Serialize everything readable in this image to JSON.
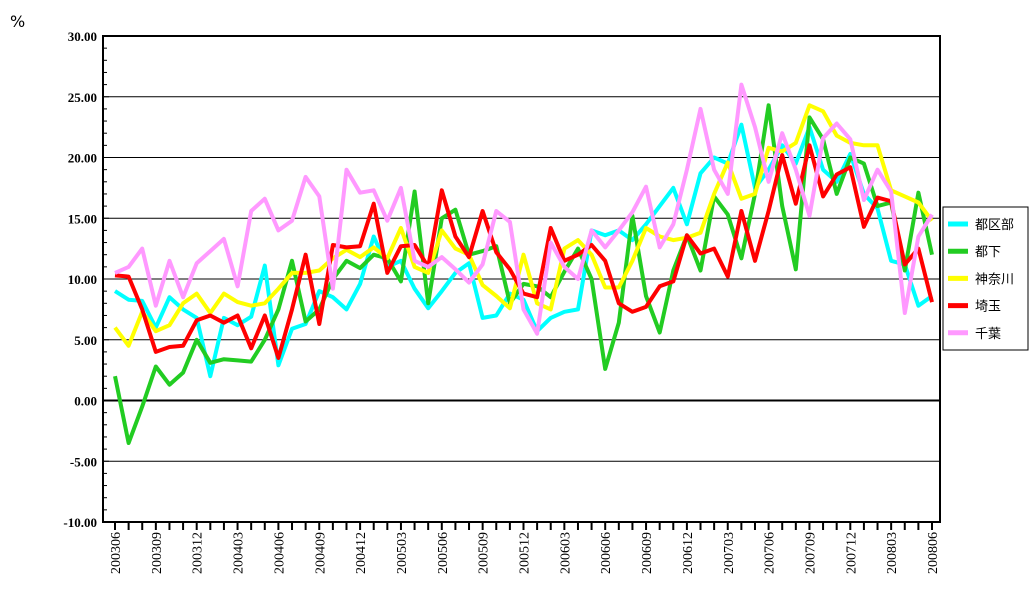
{
  "chart_data": {
    "type": "line",
    "y_axis_label": "%",
    "categories": [
      "200306",
      null,
      null,
      "200309",
      null,
      null,
      "200312",
      null,
      null,
      "200403",
      null,
      null,
      "200406",
      null,
      null,
      "200409",
      null,
      null,
      "200412",
      null,
      null,
      "200503",
      null,
      null,
      "200506",
      null,
      null,
      "200509",
      null,
      null,
      "200512",
      null,
      null,
      "200603",
      null,
      null,
      "200606",
      null,
      null,
      "200609",
      null,
      null,
      "200612",
      null,
      null,
      "200703",
      null,
      null,
      "200706",
      null,
      null,
      "200709",
      null,
      null,
      "200712",
      null,
      null,
      "200803",
      null,
      null,
      "200806"
    ],
    "ylim": [
      -10,
      30
    ],
    "yticks": [
      {
        "value": -10,
        "label": "-10.00"
      },
      {
        "value": -5,
        "label": "-5.00"
      },
      {
        "value": 0,
        "label": "0.00"
      },
      {
        "value": 5,
        "label": "5.00"
      },
      {
        "value": 10,
        "label": "10.00"
      },
      {
        "value": 15,
        "label": "15.00"
      },
      {
        "value": 20,
        "label": "20.00"
      },
      {
        "value": 25,
        "label": "25.00"
      },
      {
        "value": 30,
        "label": "30.00"
      }
    ],
    "grid": true,
    "legend": "right",
    "series": [
      {
        "name": "都区部",
        "color": "#00ffff",
        "values": [
          9.0,
          8.3,
          8.2,
          6.0,
          8.5,
          7.5,
          6.8,
          2.0,
          6.8,
          6.2,
          6.9,
          11.1,
          2.9,
          5.9,
          6.3,
          9.0,
          8.5,
          7.5,
          9.6,
          13.5,
          11.0,
          11.5,
          9.2,
          7.6,
          9.0,
          10.5,
          11.3,
          6.8,
          7.0,
          8.8,
          8.3,
          5.7,
          6.8,
          7.3,
          7.5,
          14.0,
          13.6,
          14.0,
          13.2,
          14.5,
          16.0,
          17.5,
          14.5,
          18.7,
          20.0,
          19.5,
          22.7,
          17.5,
          19.0,
          21.0,
          19.5,
          22.5,
          19.0,
          18.0,
          20.3,
          17.0,
          15.8,
          11.5,
          11.2,
          7.8,
          8.6
        ]
      },
      {
        "name": "都下",
        "color": "#22cc22",
        "values": [
          2.0,
          -3.5,
          -0.5,
          2.8,
          1.3,
          2.3,
          5.0,
          3.1,
          3.4,
          3.3,
          3.2,
          5.0,
          7.5,
          11.5,
          6.5,
          7.5,
          10.0,
          11.5,
          10.9,
          12.0,
          11.7,
          9.8,
          17.2,
          8.0,
          15.0,
          15.7,
          12.0,
          12.3,
          12.7,
          8.0,
          9.6,
          9.4,
          8.5,
          10.6,
          12.5,
          10.0,
          2.6,
          6.4,
          15.2,
          8.6,
          5.6,
          10.7,
          13.6,
          10.7,
          16.8,
          15.3,
          11.7,
          17.0,
          24.3,
          16.0,
          10.8,
          23.3,
          21.5,
          17.0,
          20.0,
          19.5,
          16.0,
          16.3,
          10.7,
          17.1,
          12.0
        ]
      },
      {
        "name": "神奈川",
        "color": "#ffff00",
        "values": [
          6.0,
          4.5,
          7.3,
          5.7,
          6.2,
          8.0,
          8.8,
          7.2,
          8.8,
          8.1,
          7.8,
          8.0,
          9.2,
          10.5,
          10.5,
          10.7,
          11.7,
          12.4,
          11.8,
          12.6,
          11.7,
          14.2,
          11.0,
          10.5,
          14.0,
          12.5,
          12.0,
          9.5,
          8.6,
          7.6,
          12.0,
          8.0,
          7.5,
          12.5,
          13.2,
          12.0,
          9.3,
          9.3,
          11.5,
          14.2,
          13.5,
          13.2,
          13.4,
          13.8,
          17.0,
          19.6,
          16.6,
          17.0,
          20.8,
          20.5,
          21.2,
          24.3,
          23.8,
          21.8,
          21.2,
          21.0,
          21.0,
          17.3,
          16.8,
          16.3,
          14.8
        ]
      },
      {
        "name": "埼玉",
        "color": "#ff0000",
        "values": [
          10.3,
          10.2,
          7.5,
          4.0,
          4.4,
          4.5,
          6.6,
          7.0,
          6.4,
          7.0,
          4.3,
          7.0,
          3.5,
          7.5,
          12.0,
          6.3,
          12.8,
          12.6,
          12.7,
          16.2,
          10.5,
          12.7,
          12.8,
          11.0,
          17.3,
          13.5,
          11.8,
          15.6,
          12.2,
          10.8,
          8.8,
          8.5,
          14.2,
          11.5,
          12.0,
          12.8,
          11.5,
          8.0,
          7.3,
          7.7,
          9.4,
          9.8,
          13.6,
          12.1,
          12.5,
          10.2,
          15.6,
          11.5,
          15.6,
          20.2,
          16.2,
          21.0,
          16.8,
          18.6,
          19.2,
          14.3,
          16.7,
          16.4,
          11.2,
          12.5,
          8.1
        ]
      },
      {
        "name": "千葉",
        "color": "#ff99ff",
        "values": [
          10.5,
          11.0,
          12.5,
          7.8,
          11.5,
          8.5,
          11.3,
          12.3,
          13.3,
          9.4,
          15.6,
          16.6,
          14.0,
          14.8,
          18.4,
          16.8,
          9.2,
          19.0,
          17.1,
          17.3,
          14.8,
          17.5,
          11.5,
          11.0,
          11.8,
          10.8,
          9.7,
          11.2,
          15.6,
          14.7,
          7.5,
          5.5,
          13.0,
          11.0,
          10.0,
          14.0,
          12.6,
          14.0,
          15.5,
          17.6,
          12.6,
          14.5,
          19.0,
          24.0,
          19.0,
          17.0,
          26.0,
          22.5,
          18.0,
          22.0,
          19.0,
          15.2,
          21.6,
          22.8,
          21.5,
          16.5,
          19.0,
          17.2,
          7.2,
          13.5,
          15.3
        ]
      }
    ]
  }
}
